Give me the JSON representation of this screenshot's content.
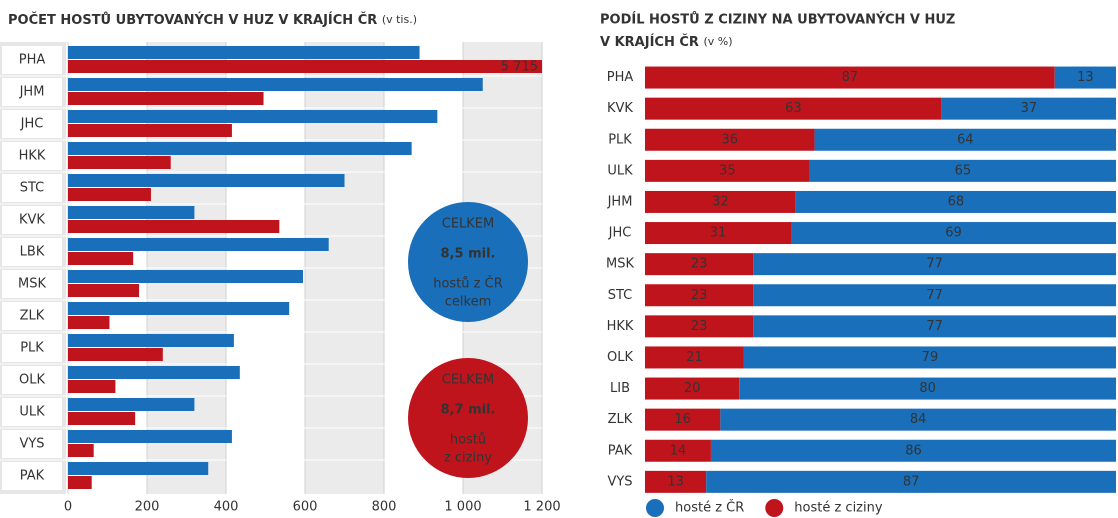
{
  "chart_data": [
    {
      "type": "bar",
      "title": "POČET HOSTŮ UBYTOVANÝCH V HUZ V KRAJÍCH ČR",
      "subtitle": "(v tis.)",
      "categories": [
        "PHA",
        "JHM",
        "JHC",
        "HKK",
        "STC",
        "KVK",
        "LBK",
        "MSK",
        "ZLK",
        "PLK",
        "OLK",
        "ULK",
        "VYS",
        "PAK"
      ],
      "series": [
        {
          "name": "hosté z ČR",
          "color": "#1a6fba",
          "values": [
            890,
            1050,
            935,
            870,
            700,
            320,
            660,
            595,
            560,
            420,
            435,
            320,
            415,
            355
          ]
        },
        {
          "name": "hosté z ciziny",
          "color": "#c0141c",
          "values": [
            5715,
            495,
            415,
            260,
            210,
            535,
            165,
            180,
            105,
            240,
            120,
            170,
            65,
            60
          ],
          "value_labels": [
            "5 715",
            null,
            null,
            null,
            null,
            null,
            null,
            null,
            null,
            null,
            null,
            null,
            null,
            null
          ]
        }
      ],
      "xlim": [
        0,
        1200
      ],
      "xticks": [
        0,
        200,
        400,
        600,
        800,
        {
          "value": 1000,
          "label": "1 000"
        },
        {
          "value": 1200,
          "label": "1 200"
        }
      ],
      "annotations": [
        {
          "color": "#1a6fba",
          "lines": [
            "CELKEM",
            "8,5 mil.",
            "hostů z ČR",
            "celkem"
          ]
        },
        {
          "color": "#c0141c",
          "lines": [
            "CELKEM",
            "8,7 mil.",
            "hostů",
            "z ciziny"
          ]
        }
      ]
    },
    {
      "type": "stacked_bar",
      "title": "PODÍL HOSTŮ Z CIZINY NA UBYTOVANÝCH V HUZ",
      "title2": "V KRAJÍCH ČR",
      "subtitle": "(v %)",
      "categories": [
        "PHA",
        "KVK",
        "PLK",
        "ULK",
        "JHM",
        "JHC",
        "MSK",
        "STC",
        "HKK",
        "OLK",
        "LIB",
        "ZLK",
        "PAK",
        "VYS"
      ],
      "series": [
        {
          "name": "hosté z ciziny",
          "color": "#c0141c",
          "values": [
            87,
            63,
            36,
            35,
            32,
            31,
            23,
            23,
            23,
            21,
            20,
            16,
            14,
            13
          ]
        },
        {
          "name": "hosté z ČR",
          "color": "#1a6fba",
          "values": [
            13,
            37,
            64,
            65,
            68,
            69,
            77,
            77,
            77,
            79,
            80,
            84,
            86,
            87
          ]
        }
      ],
      "legend_order": [
        1,
        0
      ]
    }
  ]
}
